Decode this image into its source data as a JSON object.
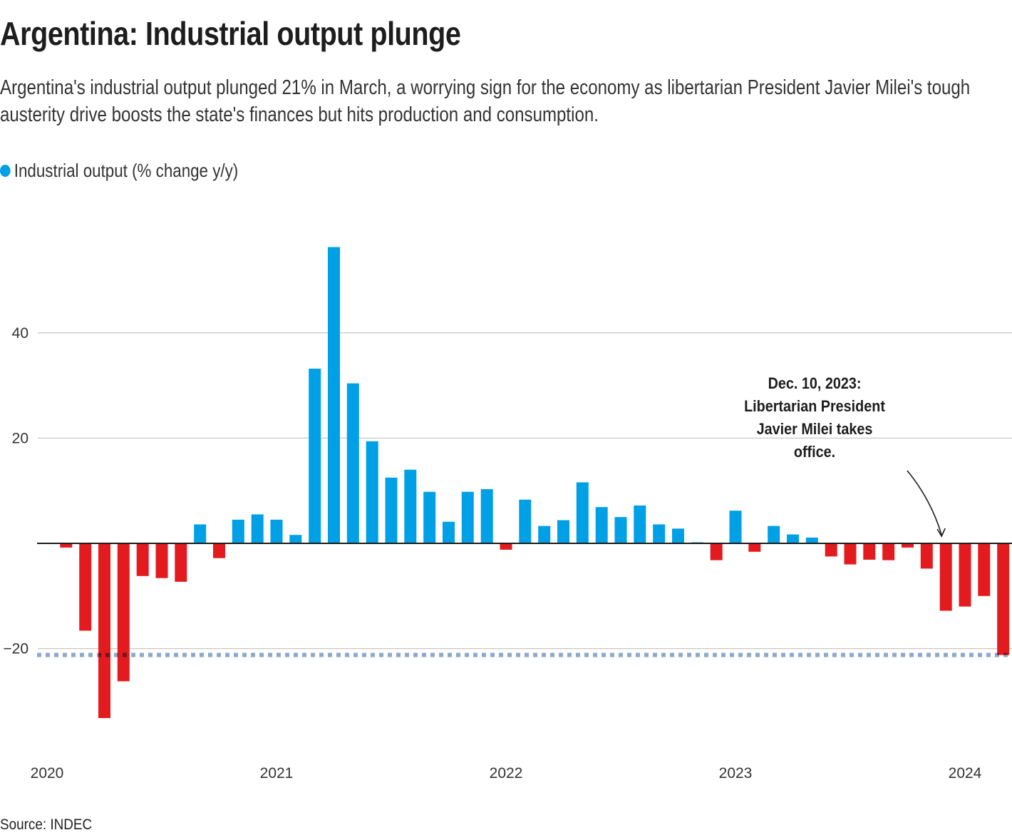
{
  "header": {
    "title": "Argentina: Industrial output plunge",
    "subtitle": "Argentina's industrial output plunged 21% in March, a worrying sign for the economy as libertarian President Javier Milei's tough austerity drive boosts the state's finances but hits production and consumption."
  },
  "legend": {
    "label": "Industrial output (% change y/y)",
    "color": "#00a0e6"
  },
  "footer": {
    "source": "Source: INDEC"
  },
  "colors": {
    "positive": "#00a0e6",
    "negative": "#e31b1f",
    "reference_line": "#88a4c8",
    "gridline": "#c8c8c8",
    "zero_line": "#1d1d1d"
  },
  "chart_data": {
    "type": "bar",
    "title": "Argentina: Industrial output plunge",
    "xlabel": "",
    "ylabel": "",
    "series_name": "Industrial output (% change y/y)",
    "ylim": [
      -36,
      58
    ],
    "y_ticks": [
      {
        "value": 40,
        "label": "40"
      },
      {
        "value": 20,
        "label": "20"
      },
      {
        "value": -20,
        "label": "−20"
      }
    ],
    "x_ticks": [
      {
        "month_index": 0,
        "label": "2020"
      },
      {
        "month_index": 12,
        "label": "2021"
      },
      {
        "month_index": 24,
        "label": "2022"
      },
      {
        "month_index": 36,
        "label": "2023"
      },
      {
        "month_index": 48,
        "label": "2024"
      }
    ],
    "grid": true,
    "legend_position": "top-left",
    "reference_line": {
      "value": -21.2,
      "style": "dotted"
    },
    "annotation": {
      "lines": [
        "Dec. 10, 2023:",
        "Libertarian President",
        "Javier Milei takes",
        "office."
      ],
      "target_month_index": 47
    },
    "start": "2020-01",
    "categories": [
      "Feb 2020",
      "Mar 2020",
      "Apr 2020",
      "May 2020",
      "Jun 2020",
      "Jul 2020",
      "Aug 2020",
      "Sep 2020",
      "Oct 2020",
      "Nov 2020",
      "Dec 2020",
      "Jan 2021",
      "Feb 2021",
      "Mar 2021",
      "Apr 2021",
      "May 2021",
      "Jun 2021",
      "Jul 2021",
      "Aug 2021",
      "Sep 2021",
      "Oct 2021",
      "Nov 2021",
      "Dec 2021",
      "Jan 2022",
      "Feb 2022",
      "Mar 2022",
      "Apr 2022",
      "May 2022",
      "Jun 2022",
      "Jul 2022",
      "Aug 2022",
      "Sep 2022",
      "Oct 2022",
      "Nov 2022",
      "Dec 2022",
      "Jan 2023",
      "Feb 2023",
      "Mar 2023",
      "Apr 2023",
      "May 2023",
      "Jun 2023",
      "Jul 2023",
      "Aug 2023",
      "Sep 2023",
      "Oct 2023",
      "Nov 2023",
      "Dec 2023",
      "Jan 2024",
      "Feb 2024",
      "Mar 2024"
    ],
    "month_indices": [
      1,
      2,
      3,
      4,
      5,
      6,
      7,
      8,
      9,
      10,
      11,
      12,
      13,
      14,
      15,
      16,
      17,
      18,
      19,
      20,
      21,
      22,
      23,
      24,
      25,
      26,
      27,
      28,
      29,
      30,
      31,
      32,
      33,
      34,
      35,
      36,
      37,
      38,
      39,
      40,
      41,
      42,
      43,
      44,
      45,
      46,
      47,
      48,
      49,
      50
    ],
    "values": [
      -0.8,
      -16.6,
      -33.2,
      -26.2,
      -6.2,
      -6.6,
      -7.3,
      3.6,
      -2.8,
      4.5,
      5.5,
      4.5,
      1.6,
      33.2,
      56.3,
      30.4,
      19.4,
      12.5,
      14.0,
      9.8,
      4.1,
      9.8,
      10.3,
      -1.2,
      8.3,
      3.3,
      4.4,
      11.6,
      6.9,
      5.0,
      7.2,
      3.6,
      2.8,
      0.2,
      -3.2,
      6.2,
      -1.6,
      3.3,
      1.7,
      1.1,
      -2.5,
      -4.0,
      -3.1,
      -3.2,
      -0.8,
      -4.8,
      -12.8,
      -12.0,
      -10.0,
      -21.2
    ]
  }
}
